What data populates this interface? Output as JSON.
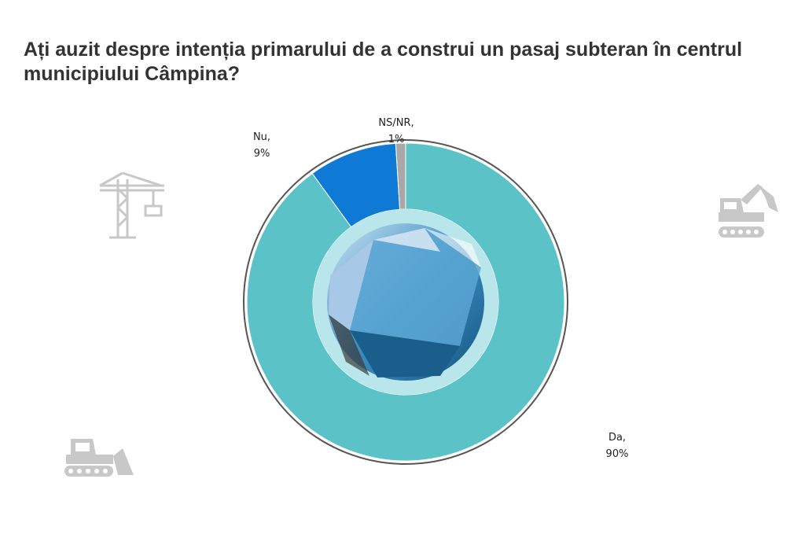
{
  "title": "Ați auzit despre intenția primarului de a construi un pasaj subteran în centrul municipiului Câmpina?",
  "chart_data": {
    "type": "pie",
    "variant": "donut",
    "title": "Ați auzit despre intenția primarului de a construi un pasaj subteran în centrul municipiului Câmpina?",
    "slices": [
      {
        "label": "Da",
        "value": 90,
        "percent_text": "90%",
        "color": "#5bc3c7"
      },
      {
        "label": "Nu",
        "value": 9,
        "percent_text": "9%",
        "color": "#0f7ad6"
      },
      {
        "label": "NS/NR",
        "value": 1,
        "percent_text": "1%",
        "color": "#a8a8a8"
      }
    ],
    "legend": "none"
  },
  "icons": {
    "tower_crane": "tower-crane-icon",
    "excavator": "excavator-icon",
    "bulldozer": "bulldozer-icon"
  },
  "colors": {
    "background": "#ffffff",
    "title": "#333333",
    "icon": "#c8c8c8"
  }
}
